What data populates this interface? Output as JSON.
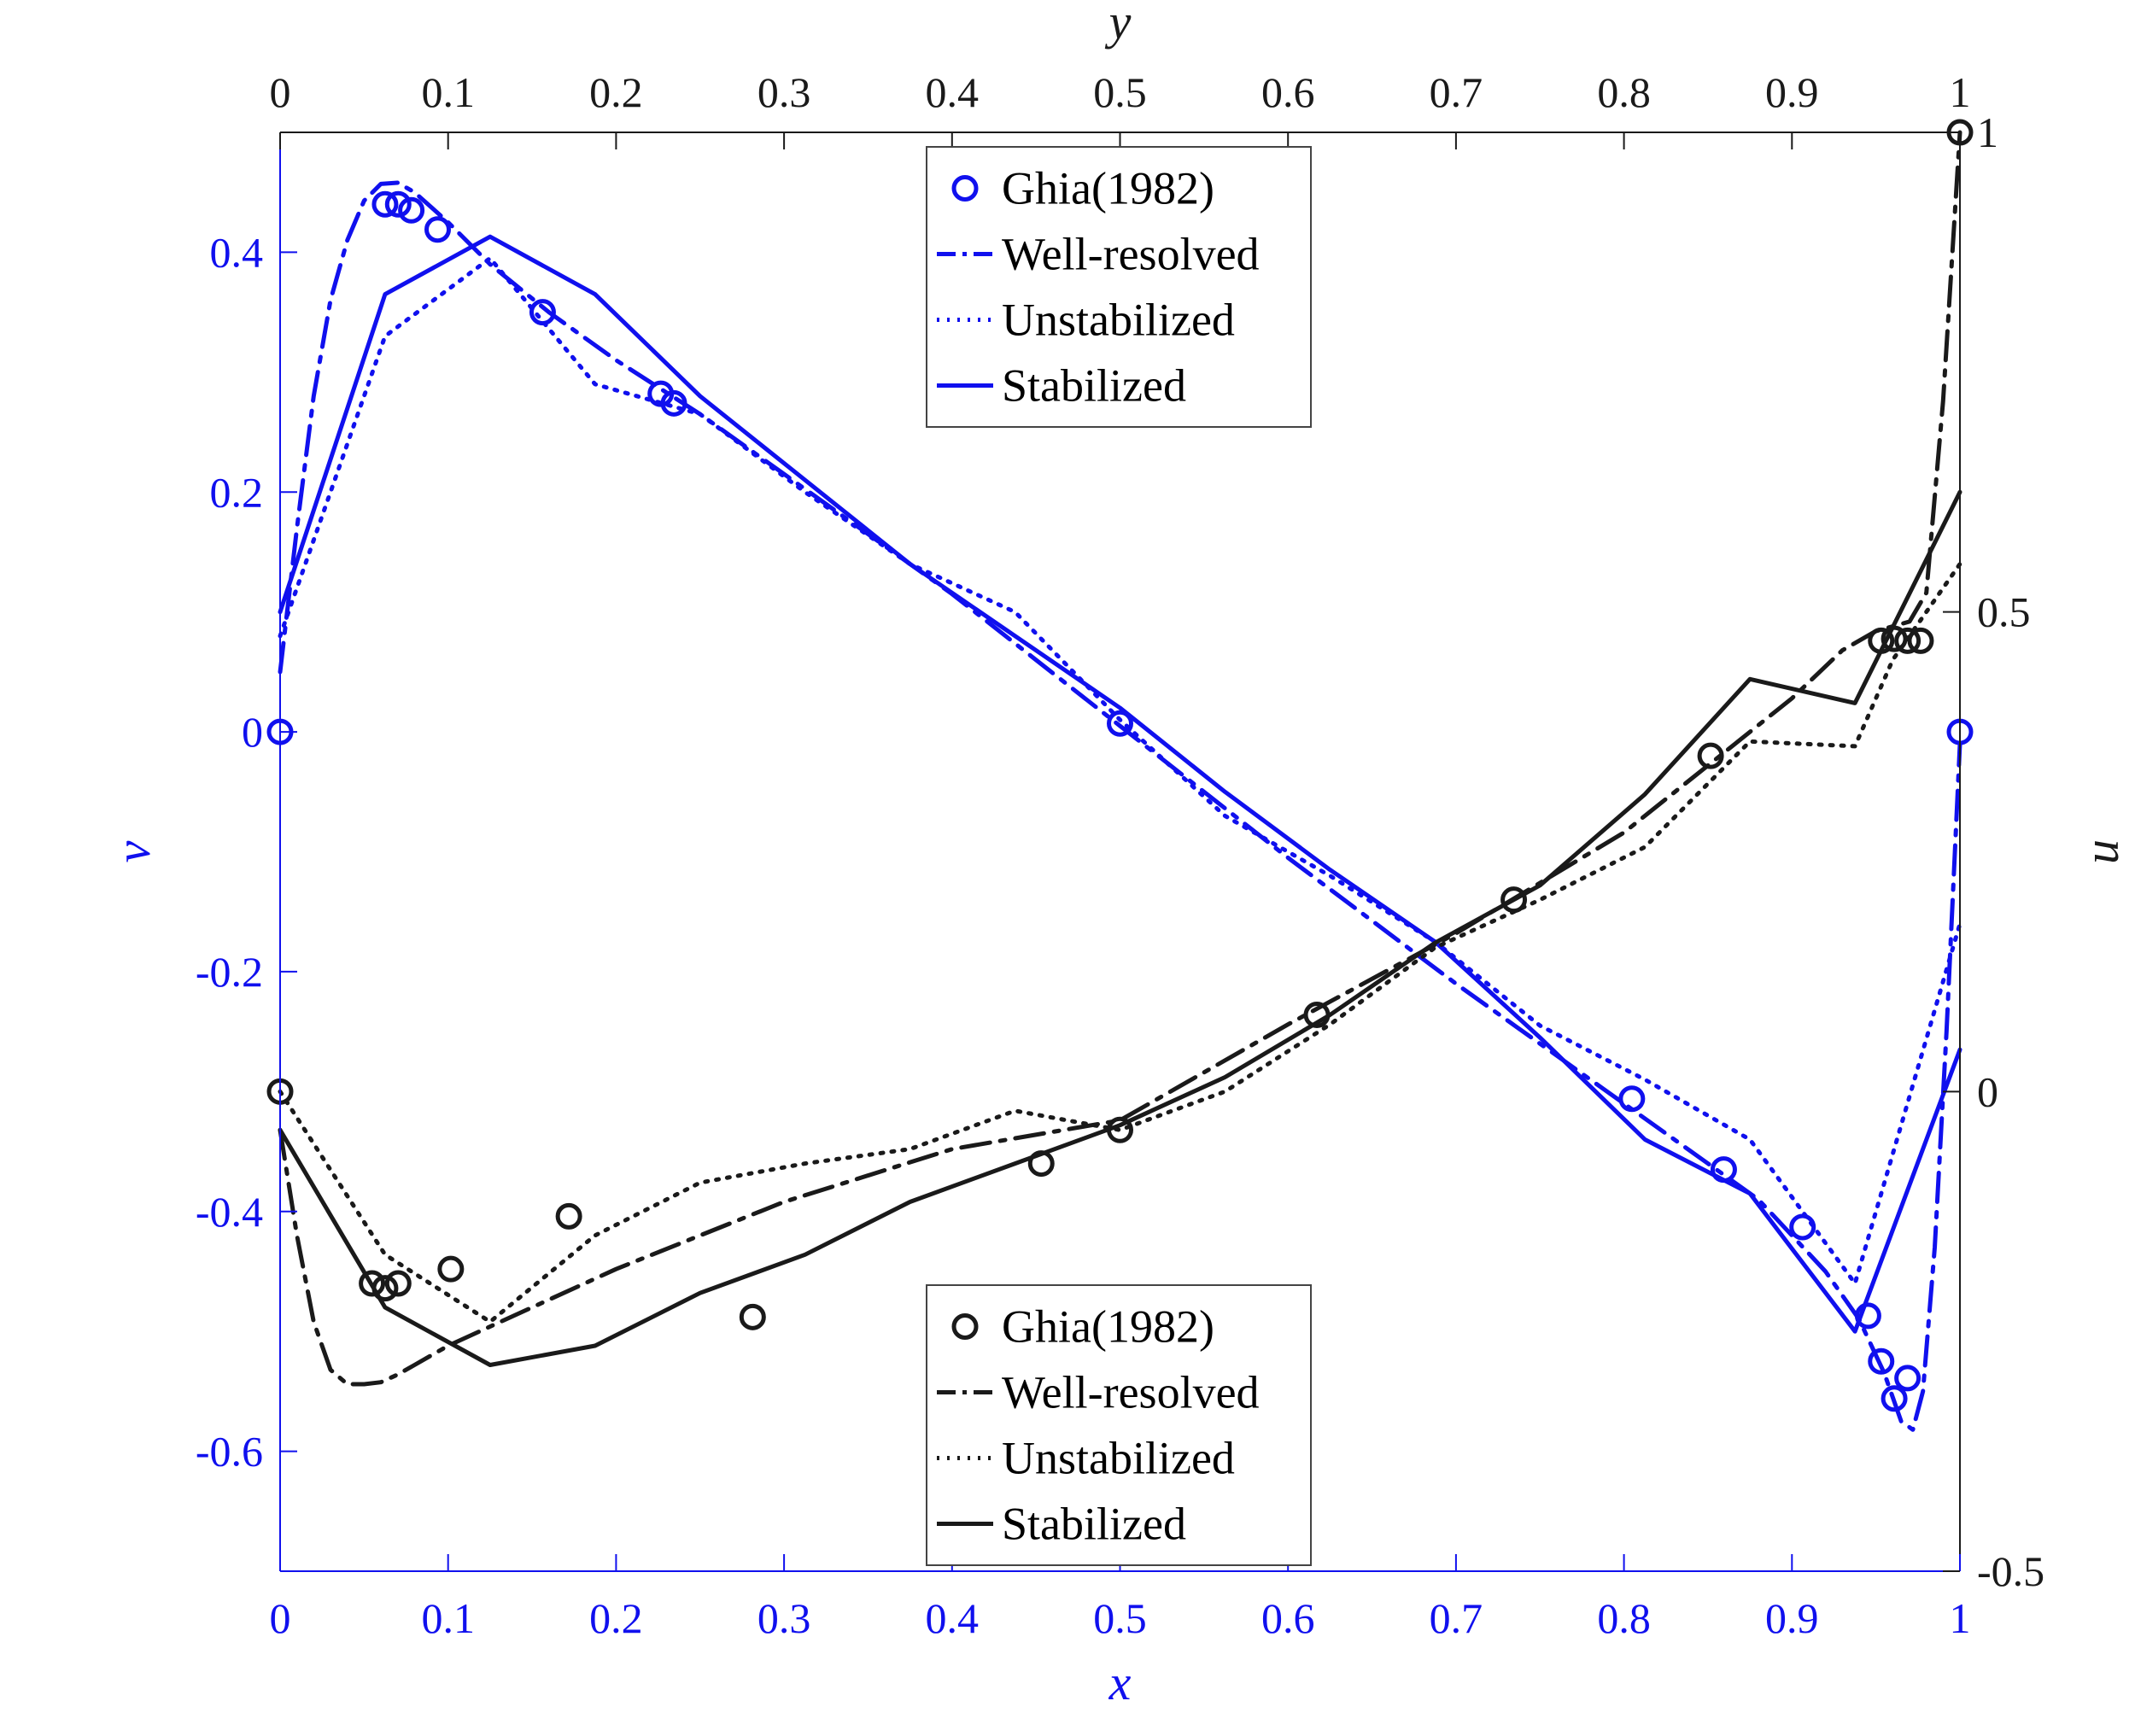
{
  "chart_data": {
    "type": "line",
    "axes": {
      "bottom": {
        "label": "x",
        "range": [
          0,
          1
        ],
        "ticks": [
          "0",
          "0.1",
          "0.2",
          "0.3",
          "0.4",
          "0.5",
          "0.6",
          "0.7",
          "0.8",
          "0.9",
          "1"
        ],
        "tick_values": [
          0,
          0.1,
          0.2,
          0.3,
          0.4,
          0.5,
          0.6,
          0.7,
          0.8,
          0.9,
          1
        ],
        "color": "#1010ee"
      },
      "top": {
        "label": "y",
        "range": [
          0,
          1
        ],
        "ticks": [
          "0",
          "0.1",
          "0.2",
          "0.3",
          "0.4",
          "0.5",
          "0.6",
          "0.7",
          "0.8",
          "0.9",
          "1"
        ],
        "tick_values": [
          0,
          0.1,
          0.2,
          0.3,
          0.4,
          0.5,
          0.6,
          0.7,
          0.8,
          0.9,
          1
        ],
        "color": "#1a1a1a"
      },
      "left": {
        "label": "v",
        "range": [
          -0.7,
          0.5
        ],
        "ticks": [
          "-0.6",
          "-0.4",
          "-0.2",
          "0",
          "0.2",
          "0.4"
        ],
        "tick_values": [
          -0.6,
          -0.4,
          -0.2,
          0,
          0.2,
          0.4
        ],
        "color": "#1010ee"
      },
      "right": {
        "label": "u",
        "range": [
          -0.5,
          1
        ],
        "ticks": [
          "-0.5",
          "0",
          "0.5",
          "1"
        ],
        "tick_values": [
          -0.5,
          0,
          0.5,
          1
        ],
        "color": "#1a1a1a"
      }
    },
    "grid": false,
    "legends": [
      {
        "placement": "top-center",
        "color": "#1010ee",
        "entries": [
          {
            "label": "Ghia(1982)",
            "style": "circle"
          },
          {
            "label": "Well-resolved",
            "style": "dashdot"
          },
          {
            "label": "Unstabilized",
            "style": "dotted"
          },
          {
            "label": "Stabilized",
            "style": "solid"
          }
        ]
      },
      {
        "placement": "bottom-center",
        "color": "#1a1a1a",
        "entries": [
          {
            "label": "Ghia(1982)",
            "style": "circle"
          },
          {
            "label": "Well-resolved",
            "style": "dashdot"
          },
          {
            "label": "Unstabilized",
            "style": "dotted"
          },
          {
            "label": "Stabilized",
            "style": "solid"
          }
        ]
      }
    ],
    "series": [
      {
        "group": "v",
        "axes": [
          "x",
          "v"
        ],
        "style": "circle",
        "color": "#1010ee",
        "points": [
          [
            0,
            0
          ],
          [
            0.0625,
            0.44
          ],
          [
            0.0703,
            0.44
          ],
          [
            0.0781,
            0.435
          ],
          [
            0.0938,
            0.419
          ],
          [
            0.1563,
            0.35
          ],
          [
            0.2266,
            0.282
          ],
          [
            0.2344,
            0.274
          ],
          [
            0.5,
            0.007
          ],
          [
            0.8047,
            -0.306
          ],
          [
            0.8594,
            -0.365
          ],
          [
            0.9063,
            -0.413
          ],
          [
            0.9453,
            -0.487
          ],
          [
            0.9531,
            -0.525
          ],
          [
            0.9609,
            -0.556
          ],
          [
            0.9688,
            -0.539
          ],
          [
            1,
            0
          ]
        ]
      },
      {
        "group": "v",
        "axes": [
          "x",
          "v"
        ],
        "style": "dashdot",
        "color": "#1010ee",
        "points": [
          [
            0,
            0.05
          ],
          [
            0.01,
            0.17
          ],
          [
            0.02,
            0.28
          ],
          [
            0.03,
            0.36
          ],
          [
            0.04,
            0.41
          ],
          [
            0.05,
            0.443
          ],
          [
            0.06,
            0.457
          ],
          [
            0.07,
            0.458
          ],
          [
            0.08,
            0.45
          ],
          [
            0.1,
            0.425
          ],
          [
            0.125,
            0.39
          ],
          [
            0.16,
            0.35
          ],
          [
            0.2,
            0.31
          ],
          [
            0.25,
            0.265
          ],
          [
            0.3,
            0.215
          ],
          [
            0.4,
            0.115
          ],
          [
            0.5,
            0.005
          ],
          [
            0.6,
            -0.105
          ],
          [
            0.7,
            -0.21
          ],
          [
            0.8,
            -0.31
          ],
          [
            0.85,
            -0.36
          ],
          [
            0.88,
            -0.39
          ],
          [
            0.9,
            -0.42
          ],
          [
            0.92,
            -0.45
          ],
          [
            0.94,
            -0.49
          ],
          [
            0.955,
            -0.535
          ],
          [
            0.965,
            -0.575
          ],
          [
            0.972,
            -0.582
          ],
          [
            0.978,
            -0.55
          ],
          [
            0.985,
            -0.43
          ],
          [
            0.992,
            -0.25
          ],
          [
            1,
            -0.01
          ]
        ]
      },
      {
        "group": "v",
        "axes": [
          "x",
          "v"
        ],
        "style": "dotted",
        "color": "#1010ee",
        "points": [
          [
            0,
            0.08
          ],
          [
            0.0625,
            0.33
          ],
          [
            0.125,
            0.395
          ],
          [
            0.1875,
            0.29
          ],
          [
            0.25,
            0.265
          ],
          [
            0.3125,
            0.2
          ],
          [
            0.375,
            0.14
          ],
          [
            0.4375,
            0.1
          ],
          [
            0.5,
            0.01
          ],
          [
            0.5625,
            -0.07
          ],
          [
            0.625,
            -0.12
          ],
          [
            0.6875,
            -0.175
          ],
          [
            0.75,
            -0.245
          ],
          [
            0.8125,
            -0.29
          ],
          [
            0.875,
            -0.34
          ],
          [
            0.9375,
            -0.46
          ],
          [
            1,
            -0.16
          ]
        ]
      },
      {
        "group": "v",
        "axes": [
          "x",
          "v"
        ],
        "style": "solid",
        "color": "#1010ee",
        "points": [
          [
            0,
            0.1
          ],
          [
            0.0625,
            0.365
          ],
          [
            0.125,
            0.413
          ],
          [
            0.1875,
            0.365
          ],
          [
            0.25,
            0.28
          ],
          [
            0.3125,
            0.21
          ],
          [
            0.375,
            0.14
          ],
          [
            0.4375,
            0.08
          ],
          [
            0.5,
            0.02
          ],
          [
            0.5625,
            -0.05
          ],
          [
            0.625,
            -0.115
          ],
          [
            0.6875,
            -0.175
          ],
          [
            0.75,
            -0.255
          ],
          [
            0.8125,
            -0.34
          ],
          [
            0.875,
            -0.385
          ],
          [
            0.9375,
            -0.5
          ],
          [
            1,
            -0.265
          ]
        ]
      },
      {
        "group": "u",
        "axes": [
          "y",
          "u"
        ],
        "style": "circle",
        "color": "#1a1a1a",
        "points": [
          [
            0,
            0
          ],
          [
            0.0547,
            -0.2
          ],
          [
            0.0625,
            -0.205
          ],
          [
            0.0703,
            -0.2
          ],
          [
            0.1016,
            -0.185
          ],
          [
            0.1719,
            -0.13
          ],
          [
            0.2813,
            -0.235
          ],
          [
            0.4531,
            -0.075
          ],
          [
            0.5,
            -0.04
          ],
          [
            0.6172,
            0.08
          ],
          [
            0.7344,
            0.2
          ],
          [
            0.8516,
            0.35
          ],
          [
            0.9531,
            0.47
          ],
          [
            0.9609,
            0.472
          ],
          [
            0.9688,
            0.47
          ],
          [
            0.9766,
            0.47
          ],
          [
            1,
            1
          ]
        ]
      },
      {
        "group": "u",
        "axes": [
          "y",
          "u"
        ],
        "style": "dashdot",
        "color": "#1a1a1a",
        "points": [
          [
            0,
            -0.04
          ],
          [
            0.01,
            -0.15
          ],
          [
            0.02,
            -0.24
          ],
          [
            0.03,
            -0.29
          ],
          [
            0.04,
            -0.305
          ],
          [
            0.05,
            -0.305
          ],
          [
            0.06,
            -0.303
          ],
          [
            0.07,
            -0.295
          ],
          [
            0.08,
            -0.285
          ],
          [
            0.1,
            -0.265
          ],
          [
            0.125,
            -0.245
          ],
          [
            0.15,
            -0.225
          ],
          [
            0.2,
            -0.185
          ],
          [
            0.25,
            -0.15
          ],
          [
            0.3,
            -0.115
          ],
          [
            0.4,
            -0.06
          ],
          [
            0.5,
            -0.03
          ],
          [
            0.6,
            0.07
          ],
          [
            0.7,
            0.165
          ],
          [
            0.8,
            0.27
          ],
          [
            0.85,
            0.34
          ],
          [
            0.9,
            0.41
          ],
          [
            0.93,
            0.46
          ],
          [
            0.95,
            0.48
          ],
          [
            0.96,
            0.485
          ],
          [
            0.97,
            0.49
          ],
          [
            0.98,
            0.52
          ],
          [
            0.99,
            0.72
          ],
          [
            1,
            1
          ]
        ]
      },
      {
        "group": "u",
        "axes": [
          "y",
          "u"
        ],
        "style": "dotted",
        "color": "#1a1a1a",
        "points": [
          [
            0,
            0
          ],
          [
            0.0625,
            -0.17
          ],
          [
            0.125,
            -0.24
          ],
          [
            0.1875,
            -0.15
          ],
          [
            0.25,
            -0.095
          ],
          [
            0.3125,
            -0.075
          ],
          [
            0.375,
            -0.06
          ],
          [
            0.4375,
            -0.02
          ],
          [
            0.5,
            -0.04
          ],
          [
            0.5625,
            0.0
          ],
          [
            0.625,
            0.07
          ],
          [
            0.6875,
            0.15
          ],
          [
            0.75,
            0.2
          ],
          [
            0.8125,
            0.255
          ],
          [
            0.875,
            0.365
          ],
          [
            0.9375,
            0.36
          ],
          [
            0.96,
            0.45
          ],
          [
            1,
            0.55
          ]
        ]
      },
      {
        "group": "u",
        "axes": [
          "y",
          "u"
        ],
        "style": "solid",
        "color": "#1a1a1a",
        "points": [
          [
            0,
            -0.04
          ],
          [
            0.0625,
            -0.225
          ],
          [
            0.125,
            -0.285
          ],
          [
            0.1875,
            -0.265
          ],
          [
            0.25,
            -0.21
          ],
          [
            0.3125,
            -0.17
          ],
          [
            0.375,
            -0.115
          ],
          [
            0.4375,
            -0.075
          ],
          [
            0.5,
            -0.035
          ],
          [
            0.5625,
            0.015
          ],
          [
            0.625,
            0.08
          ],
          [
            0.6875,
            0.155
          ],
          [
            0.75,
            0.215
          ],
          [
            0.8125,
            0.31
          ],
          [
            0.875,
            0.43
          ],
          [
            0.9375,
            0.405
          ],
          [
            1,
            0.625
          ]
        ]
      }
    ]
  }
}
